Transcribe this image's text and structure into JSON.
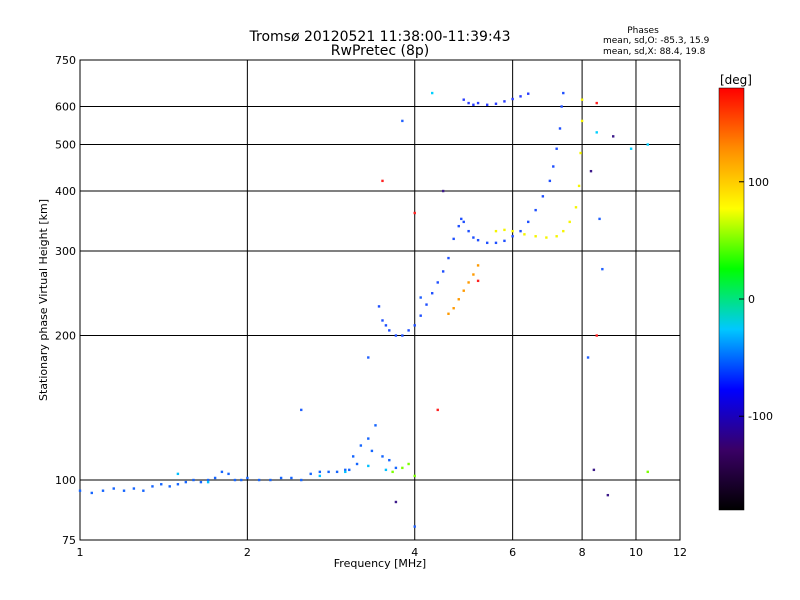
{
  "chart_data": {
    "type": "scatter",
    "title": "Tromsø 20120521 11:38:00-11:39:43",
    "subtitle": "RwPretec (8p)",
    "xlabel": "Frequency [MHz]",
    "ylabel": "Stationary phase Virtual Height [km]",
    "xscale": "log",
    "yscale": "log",
    "xlim": [
      1,
      12
    ],
    "ylim": [
      75,
      750
    ],
    "xticks": [
      1,
      2,
      4,
      6,
      8,
      10,
      12
    ],
    "xtick_labels": [
      "1",
      "2",
      "4",
      "6",
      "8",
      "10",
      "12"
    ],
    "yticks": [
      75,
      100,
      200,
      300,
      400,
      500,
      600,
      750
    ],
    "ytick_labels": [
      "75",
      "100",
      "200",
      "300",
      "400",
      "500",
      "600",
      "750"
    ],
    "grid": true,
    "phases": {
      "heading": "Phases",
      "line_o": "mean, sd,O: -85.3, 15.9",
      "line_x": "mean, sd,X:  88.4, 19.8"
    },
    "colorbar": {
      "unit": "[deg]",
      "range": [
        -180,
        180
      ],
      "ticks": [
        100,
        0,
        -100
      ],
      "tick_labels": [
        "100",
        "0",
        "-100"
      ],
      "colors": [
        "#000000",
        "#3a0066",
        "#0000ff",
        "#00c8ff",
        "#00ff00",
        "#ffff00",
        "#ff8c00",
        "#ff0000"
      ]
    },
    "series": [
      {
        "color": "#1565ff",
        "points": [
          [
            1.0,
            95
          ],
          [
            1.05,
            94
          ],
          [
            1.1,
            95
          ],
          [
            1.15,
            96
          ],
          [
            1.2,
            95
          ],
          [
            1.25,
            96
          ],
          [
            1.3,
            95
          ],
          [
            1.35,
            97
          ],
          [
            1.4,
            98
          ],
          [
            1.45,
            97
          ],
          [
            1.5,
            98
          ],
          [
            1.55,
            99
          ],
          [
            1.6,
            100
          ],
          [
            1.65,
            99
          ],
          [
            1.7,
            100
          ],
          [
            1.75,
            101
          ],
          [
            1.8,
            104
          ],
          [
            1.85,
            103
          ],
          [
            1.9,
            100
          ],
          [
            1.95,
            100
          ],
          [
            2.0,
            101
          ],
          [
            2.1,
            100
          ],
          [
            2.2,
            100
          ],
          [
            2.3,
            101
          ],
          [
            2.4,
            101
          ],
          [
            2.5,
            100
          ],
          [
            2.6,
            103
          ],
          [
            2.7,
            104
          ],
          [
            2.8,
            104
          ],
          [
            2.9,
            104
          ],
          [
            3.0,
            105
          ]
        ]
      },
      {
        "color": "#1565ff",
        "points": [
          [
            3.05,
            105
          ],
          [
            3.1,
            112
          ],
          [
            3.15,
            108
          ],
          [
            3.2,
            118
          ],
          [
            3.3,
            122
          ],
          [
            3.4,
            130
          ],
          [
            3.35,
            115
          ],
          [
            3.5,
            112
          ],
          [
            3.6,
            110
          ],
          [
            3.7,
            106
          ]
        ]
      },
      {
        "color": "#1e4fff",
        "points": [
          [
            3.45,
            230
          ],
          [
            3.5,
            215
          ],
          [
            3.55,
            210
          ],
          [
            3.6,
            205
          ],
          [
            3.7,
            200
          ],
          [
            3.8,
            200
          ],
          [
            3.9,
            205
          ],
          [
            4.0,
            210
          ],
          [
            4.1,
            220
          ],
          [
            4.2,
            232
          ],
          [
            4.3,
            245
          ],
          [
            4.4,
            258
          ],
          [
            4.5,
            272
          ],
          [
            4.6,
            290
          ],
          [
            4.7,
            318
          ],
          [
            4.8,
            338
          ],
          [
            4.85,
            350
          ],
          [
            4.9,
            345
          ],
          [
            5.0,
            330
          ],
          [
            5.1,
            320
          ],
          [
            5.2,
            316
          ],
          [
            5.4,
            312
          ],
          [
            5.6,
            312
          ],
          [
            5.8,
            315
          ],
          [
            6.0,
            322
          ],
          [
            6.2,
            330
          ],
          [
            6.4,
            345
          ],
          [
            6.6,
            365
          ],
          [
            6.8,
            390
          ],
          [
            7.0,
            420
          ],
          [
            7.1,
            450
          ],
          [
            7.2,
            490
          ],
          [
            7.3,
            540
          ],
          [
            7.35,
            600
          ],
          [
            7.4,
            640
          ]
        ]
      },
      {
        "color": "#2a3cff",
        "points": [
          [
            4.9,
            620
          ],
          [
            5.0,
            610
          ],
          [
            5.1,
            605
          ],
          [
            5.2,
            610
          ],
          [
            5.4,
            605
          ],
          [
            5.6,
            608
          ],
          [
            5.8,
            615
          ],
          [
            6.0,
            622
          ],
          [
            6.2,
            630
          ],
          [
            6.4,
            638
          ]
        ]
      },
      {
        "color": "#ff9a00",
        "points": [
          [
            4.6,
            222
          ],
          [
            4.7,
            228
          ],
          [
            4.8,
            238
          ],
          [
            4.9,
            248
          ],
          [
            5.0,
            258
          ],
          [
            5.1,
            268
          ],
          [
            5.2,
            280
          ]
        ]
      },
      {
        "color": "#f5f500",
        "points": [
          [
            5.6,
            330
          ],
          [
            5.8,
            332
          ],
          [
            6.0,
            330
          ],
          [
            6.3,
            325
          ],
          [
            6.6,
            322
          ],
          [
            6.9,
            320
          ],
          [
            7.2,
            322
          ],
          [
            7.4,
            330
          ],
          [
            7.6,
            345
          ],
          [
            7.8,
            370
          ],
          [
            7.9,
            410
          ],
          [
            7.95,
            480
          ],
          [
            8.0,
            560
          ],
          [
            8.0,
            620
          ]
        ]
      },
      {
        "color": "#00c0ff",
        "points": [
          [
            1.5,
            103
          ],
          [
            1.7,
            99
          ],
          [
            2.7,
            102
          ],
          [
            3.0,
            104
          ],
          [
            3.3,
            107
          ],
          [
            3.55,
            105
          ]
        ]
      },
      {
        "color": "#ff2020",
        "points": [
          [
            3.5,
            420
          ],
          [
            4.0,
            360
          ],
          [
            4.4,
            140
          ],
          [
            5.2,
            260
          ],
          [
            8.5,
            200
          ],
          [
            8.5,
            610
          ]
        ]
      },
      {
        "color": "#3d1a8a",
        "points": [
          [
            3.7,
            90
          ],
          [
            4.5,
            400
          ],
          [
            8.3,
            440
          ],
          [
            8.4,
            105
          ],
          [
            8.9,
            93
          ],
          [
            9.1,
            520
          ]
        ]
      },
      {
        "color": "#7cff00",
        "points": [
          [
            3.65,
            104
          ],
          [
            3.8,
            106
          ],
          [
            3.9,
            108
          ],
          [
            4.0,
            102
          ],
          [
            10.5,
            104
          ]
        ]
      },
      {
        "color": "#00d0ff",
        "points": [
          [
            4.3,
            640
          ],
          [
            8.5,
            530
          ],
          [
            9.8,
            490
          ],
          [
            10.5,
            500
          ]
        ]
      },
      {
        "color": "#2060ff",
        "points": [
          [
            2.5,
            140
          ],
          [
            3.3,
            180
          ],
          [
            3.8,
            560
          ],
          [
            4.0,
            80
          ],
          [
            4.1,
            240
          ],
          [
            8.2,
            180
          ],
          [
            8.6,
            350
          ],
          [
            8.7,
            275
          ]
        ]
      }
    ]
  }
}
